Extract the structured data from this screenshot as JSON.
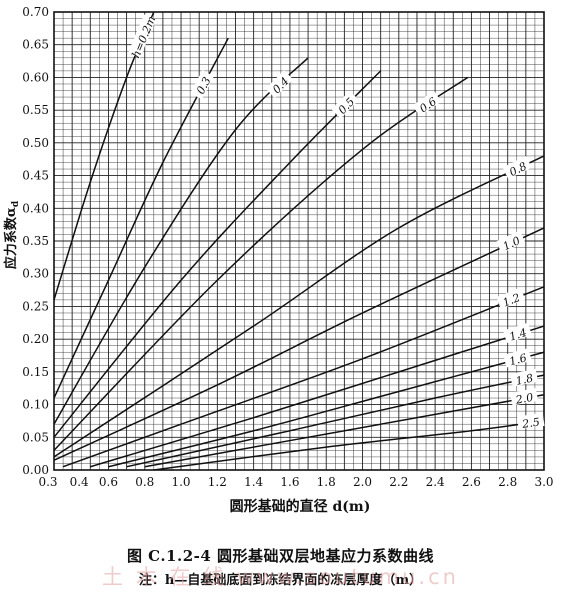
{
  "chart_data": {
    "type": "line",
    "title": "图 C.1.2-4  圆形基础双层地基应力系数曲线",
    "note": "注：h—自基础底面到冻结界面的冻层厚度（m）",
    "xlabel": "圆形基础的直径 d(m)",
    "ylabel": "应力系数α",
    "ylabel_subscript": "d",
    "xlim": [
      0.3,
      3.0
    ],
    "ylim": [
      0.0,
      0.7
    ],
    "grid": true,
    "x_ticks": [
      "0.3",
      "0.4",
      "0.6",
      "0.8",
      "1.0",
      "1.2",
      "1.4",
      "1.6",
      "1.8",
      "2.0",
      "2.2",
      "2.4",
      "2.6",
      "2.8",
      "3.0"
    ],
    "x_tick_values": [
      0.3,
      0.4,
      0.6,
      0.8,
      1.0,
      1.2,
      1.4,
      1.6,
      1.8,
      2.0,
      2.2,
      2.4,
      2.6,
      2.8,
      3.0
    ],
    "y_ticks": [
      "0.00",
      "0.05",
      "0.10",
      "0.15",
      "0.20",
      "0.25",
      "0.30",
      "0.35",
      "0.40",
      "0.45",
      "0.50",
      "0.55",
      "0.60",
      "0.65",
      "0.70"
    ],
    "y_tick_values": [
      0.0,
      0.05,
      0.1,
      0.15,
      0.2,
      0.25,
      0.3,
      0.35,
      0.4,
      0.45,
      0.5,
      0.55,
      0.6,
      0.65,
      0.7
    ],
    "series": [
      {
        "name": "h=0.2m",
        "x": [
          0.3,
          0.5,
          0.7,
          0.85
        ],
        "y": [
          0.26,
          0.44,
          0.6,
          0.7
        ]
      },
      {
        "name": "0.3",
        "x": [
          0.3,
          0.6,
          0.9,
          1.26
        ],
        "y": [
          0.11,
          0.29,
          0.47,
          0.66
        ]
      },
      {
        "name": "0.4",
        "x": [
          0.3,
          0.8,
          1.3,
          1.7
        ],
        "y": [
          0.07,
          0.31,
          0.52,
          0.63
        ]
      },
      {
        "name": "0.5",
        "x": [
          0.3,
          1.0,
          1.6,
          2.1
        ],
        "y": [
          0.05,
          0.29,
          0.47,
          0.61
        ]
      },
      {
        "name": "0.6",
        "x": [
          0.3,
          1.2,
          2.0,
          2.58
        ],
        "y": [
          0.03,
          0.29,
          0.49,
          0.6
        ]
      },
      {
        "name": "0.8",
        "x": [
          0.3,
          1.4,
          2.2,
          3.0
        ],
        "y": [
          0.02,
          0.22,
          0.37,
          0.48
        ]
      },
      {
        "name": "1.0",
        "x": [
          0.3,
          1.2,
          2.0,
          3.0
        ],
        "y": [
          0.015,
          0.13,
          0.24,
          0.37
        ]
      },
      {
        "name": "1.2",
        "x": [
          0.35,
          1.0,
          2.0,
          3.0
        ],
        "y": [
          0.005,
          0.07,
          0.17,
          0.28
        ]
      },
      {
        "name": "1.4",
        "x": [
          0.5,
          1.4,
          2.2,
          3.0
        ],
        "y": [
          0.005,
          0.08,
          0.15,
          0.22
        ]
      },
      {
        "name": "1.6",
        "x": [
          0.6,
          1.4,
          2.2,
          3.0
        ],
        "y": [
          0.005,
          0.06,
          0.12,
          0.18
        ]
      },
      {
        "name": "1.8",
        "x": [
          0.7,
          1.6,
          2.4,
          3.0
        ],
        "y": [
          0.005,
          0.06,
          0.11,
          0.145
        ]
      },
      {
        "name": "2.0",
        "x": [
          0.8,
          1.6,
          2.4,
          3.0
        ],
        "y": [
          0.005,
          0.045,
          0.085,
          0.115
        ]
      },
      {
        "name": "2.5",
        "x": [
          0.85,
          1.8,
          2.6,
          3.0
        ],
        "y": [
          0.0,
          0.035,
          0.06,
          0.075
        ]
      }
    ]
  },
  "watermark": "土 木 在 线   www.soutumu.cn",
  "colors": {
    "line": "#111111",
    "grid": "#222222",
    "watermark": "#e3a3a3"
  }
}
